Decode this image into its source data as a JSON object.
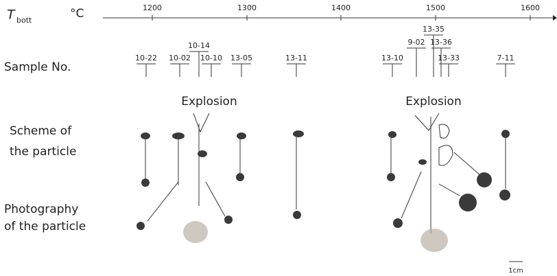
{
  "axis": {
    "symbol": "T",
    "subscript": "bott",
    "unit": "°C",
    "ticks": [
      "1200",
      "1300",
      "1400",
      "1500",
      "1600"
    ]
  },
  "rows": {
    "sample": "Sample No.",
    "scheme": [
      "Scheme of",
      "the particle"
    ],
    "photo": [
      "Photography",
      "of the particle"
    ]
  },
  "samples": [
    "10-22",
    "10-02",
    "10-14",
    "10-10",
    "13-05",
    "13-11",
    "13-10",
    "9-02",
    "13-35",
    "13-36",
    "13-33",
    "7-11"
  ],
  "explosion": [
    "Explosion",
    "Explosion"
  ],
  "scale": "1cm"
}
